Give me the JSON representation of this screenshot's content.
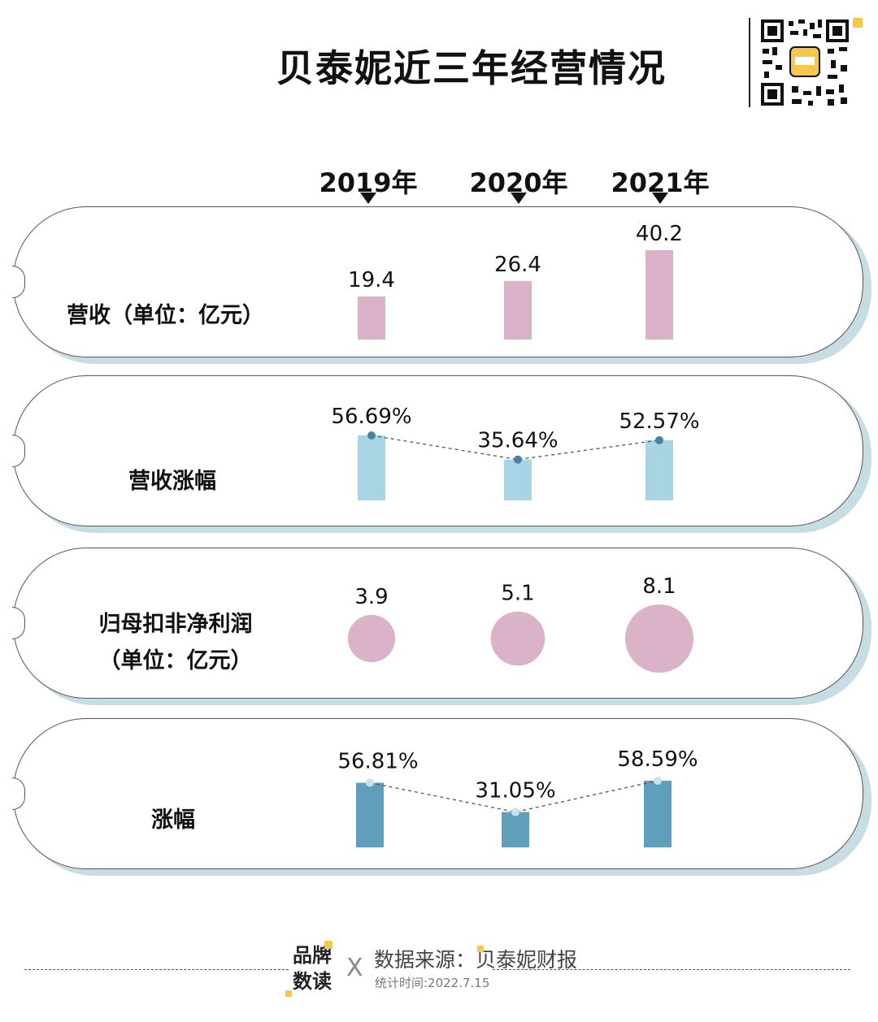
{
  "title": "贝泰妮近三年经营情况",
  "qr_icon": "qr-code-icon",
  "colors": {
    "pink": "#dab3c8",
    "light_blue": "#a8d4e3",
    "dark_blue": "#5f9fbb",
    "dot_dark": "#4d7fa0",
    "dot_light": "#c8e2ec",
    "shadow": "#c7dde4",
    "accent": "#f5c84c"
  },
  "chart_data": {
    "type": "bar",
    "categories": [
      "2019年",
      "2020年",
      "2021年"
    ],
    "series": [
      {
        "name": "营收（单位：亿元）",
        "values": [
          19.4,
          26.4,
          40.2
        ],
        "labels": [
          "19.4",
          "26.4",
          "40.2"
        ]
      },
      {
        "name": "营收涨幅",
        "values": [
          56.69,
          35.64,
          52.57
        ],
        "labels": [
          "56.69%",
          "35.64%",
          "52.57%"
        ]
      },
      {
        "name": "归母扣非净利润（单位：亿元）",
        "values": [
          3.9,
          5.1,
          8.1
        ],
        "labels": [
          "3.9",
          "5.1",
          "8.1"
        ]
      },
      {
        "name": "涨幅",
        "values": [
          56.81,
          31.05,
          58.59
        ],
        "labels": [
          "56.81%",
          "31.05%",
          "58.59%"
        ]
      }
    ],
    "legend": "none",
    "grid": false
  },
  "rows": {
    "r1_label": "营收（单位：亿元）",
    "r2_label": "营收涨幅",
    "r3_label_line1": "归母扣非净利润",
    "r3_label_line2": "（单位：亿元）",
    "r4_label": "涨幅"
  },
  "footer": {
    "brand_line1": "品牌",
    "brand_line2": "数读",
    "cross": "X",
    "source": "数据来源：贝泰妮财报",
    "stat_time": "统计时间:2022.7.15"
  }
}
